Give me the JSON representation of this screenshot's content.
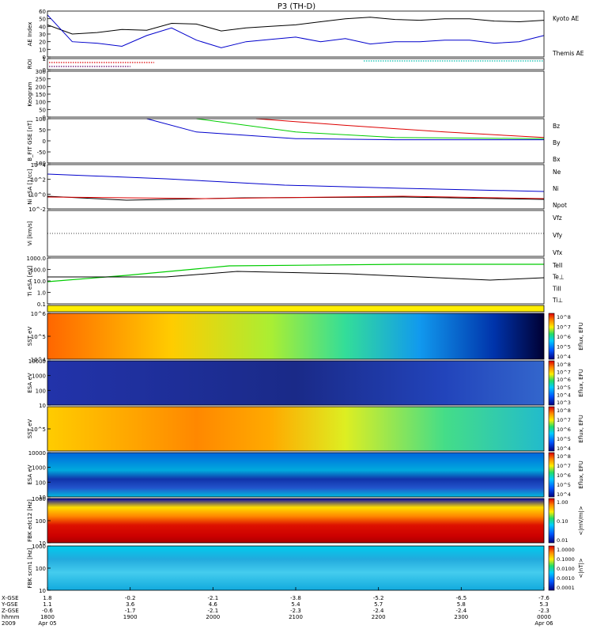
{
  "title": "P3 (TH-D)",
  "colors": {
    "kyoto": "#000000",
    "themis": "#0000cc",
    "red": "#dd0000",
    "green": "#00cc00",
    "blue": "#0000cc",
    "black": "#000000",
    "yellow": "#ffee00"
  },
  "chart_data": {
    "type": "line",
    "title": "P3 (TH-D)",
    "x_ticks": [
      "1800",
      "1900",
      "2000",
      "2100",
      "2200",
      "2300",
      "0000"
    ],
    "x_axis_rows": [
      {
        "label": "X-GSE",
        "values": [
          "1.8",
          "-0.2",
          "-2.1",
          "-3.8",
          "-5.2",
          "-6.5",
          "-7.6"
        ]
      },
      {
        "label": "Y-GSE",
        "values": [
          "1.1",
          "3.6",
          "4.6",
          "5.4",
          "5.7",
          "5.8",
          "5.3"
        ]
      },
      {
        "label": "Z-GSE",
        "values": [
          "-0.6",
          "-1.7",
          "-2.1",
          "-2.3",
          "-2.4",
          "-2.4",
          "-2.3"
        ]
      },
      {
        "label": "hhmm",
        "values": [
          "1800",
          "1900",
          "2000",
          "2100",
          "2200",
          "2300",
          "0000"
        ]
      },
      {
        "label": "2009",
        "values": [
          "Apr 05",
          "",
          "",
          "",
          "",
          "",
          "Apr 06"
        ]
      }
    ],
    "panels": [
      {
        "ylabel": "AE Index",
        "ticks": [
          "60",
          "50",
          "40",
          "30",
          "20",
          "10",
          "0"
        ],
        "legend": [
          "Kyoto AE",
          "Themis AE"
        ],
        "series": [
          {
            "name": "Kyoto AE",
            "x": [
              0,
              0.05,
              0.1,
              0.15,
              0.2,
              0.25,
              0.3,
              0.35,
              0.4,
              0.45,
              0.5,
              0.55,
              0.6,
              0.65,
              0.7,
              0.75,
              0.8,
              0.85,
              0.9,
              0.95,
              1
            ],
            "y": [
              42,
              30,
              32,
              36,
              35,
              44,
              43,
              34,
              38,
              40,
              42,
              46,
              50,
              52,
              49,
              48,
              50,
              50,
              47,
              46,
              48
            ]
          },
          {
            "name": "Themis AE",
            "x": [
              0,
              0.05,
              0.1,
              0.15,
              0.2,
              0.25,
              0.3,
              0.35,
              0.4,
              0.45,
              0.5,
              0.55,
              0.6,
              0.65,
              0.7,
              0.75,
              0.8,
              0.85,
              0.9,
              0.95,
              1
            ],
            "y": [
              55,
              20,
              18,
              14,
              28,
              38,
              22,
              12,
              20,
              23,
              26,
              20,
              24,
              17,
              20,
              20,
              22,
              22,
              18,
              20,
              28
            ]
          }
        ]
      },
      {
        "ylabel": "ROI",
        "ticks": [
          "1",
          "0"
        ]
      },
      {
        "ylabel": "Keogram",
        "ticks": [
          "300",
          "250",
          "200",
          "150",
          "100",
          "50",
          "0"
        ]
      },
      {
        "ylabel": "B_FIT GSE [nT]",
        "ticks": [
          "100",
          "50",
          "0",
          "-50",
          "-100"
        ],
        "legend": [
          "Bz",
          "By",
          "Bx"
        ],
        "series": [
          {
            "name": "Bz",
            "x": [
              0.42,
              0.6,
              0.8,
              1
            ],
            "y": [
              100,
              70,
              40,
              15
            ]
          },
          {
            "name": "By",
            "x": [
              0.3,
              0.5,
              0.7,
              1
            ],
            "y": [
              100,
              40,
              15,
              10
            ]
          },
          {
            "name": "Bx",
            "x": [
              0.2,
              0.3,
              0.5,
              0.7,
              1
            ],
            "y": [
              100,
              40,
              10,
              5,
              5
            ]
          }
        ]
      },
      {
        "ylabel": "Ni eSA [1/cc]",
        "ticks": [
          "10^4",
          "10^2",
          "10^0",
          "10^-2"
        ],
        "legend": [
          "Ne",
          "Ni",
          "Npot"
        ]
      },
      {
        "ylabel": "Vi [km/s]",
        "legend": [
          "Vfz",
          "Vfy",
          "Vfx"
        ]
      },
      {
        "ylabel": "Ti eSA [eV]",
        "ticks": [
          "1000.0",
          "100.0",
          "10.0",
          "1.0",
          "0.1"
        ],
        "legend": [
          "TeII",
          "Te⊥",
          "TiII",
          "Ti⊥"
        ]
      },
      {
        "ylabel": "SST eV",
        "ticks": [
          "10^6",
          "10^5",
          "10^4"
        ],
        "colorbar": "Eflux, EFU",
        "cticks": [
          "10^8",
          "10^7",
          "10^6",
          "10^5",
          "10^4"
        ]
      },
      {
        "ylabel": "ESA eV",
        "ticks": [
          "10000",
          "1000",
          "100",
          "10"
        ],
        "colorbar": "Eflux, EFU",
        "cticks": [
          "10^8",
          "10^7",
          "10^6",
          "10^5",
          "10^4",
          "10^3"
        ]
      },
      {
        "ylabel": "SST eV",
        "ticks": [
          "10^5"
        ],
        "colorbar": "Eflux, EFU",
        "cticks": [
          "10^8",
          "10^7",
          "10^6",
          "10^5",
          "10^4"
        ]
      },
      {
        "ylabel": "ESA eV",
        "ticks": [
          "10000",
          "1000",
          "100",
          "10"
        ],
        "colorbar": "Eflux, EFU",
        "cticks": [
          "10^8",
          "10^7",
          "10^6",
          "10^5",
          "10^4"
        ]
      },
      {
        "ylabel": "FBK edc12 [Hz]",
        "ticks": [
          "1000",
          "100",
          "10"
        ],
        "colorbar": "<|mV/m|>",
        "cticks": [
          "1.00",
          "0.10",
          "0.01"
        ]
      },
      {
        "ylabel": "FBK scm1 [Hz]",
        "ticks": [
          "1000",
          "100",
          "10"
        ],
        "colorbar": "<|nT|>",
        "cticks": [
          "1.0000",
          "0.1000",
          "0.0100",
          "0.0010",
          "0.0001"
        ]
      }
    ]
  }
}
